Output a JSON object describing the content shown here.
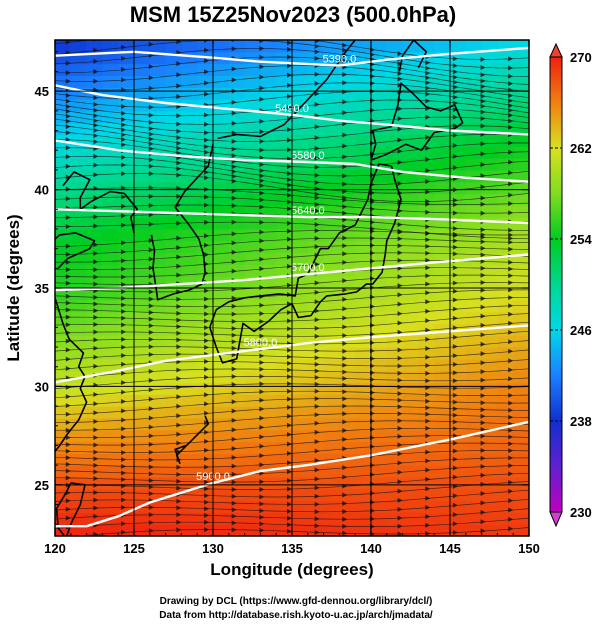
{
  "chart_data": {
    "type": "heatmap",
    "title": "MSM 15Z25Nov2023 (500.0hPa)",
    "xlabel": "Longitude (degrees)",
    "ylabel": "Latitude  (degrees)",
    "xlim": [
      120,
      150
    ],
    "ylim": [
      22.4,
      47.6
    ],
    "x_ticks": [
      120,
      125,
      130,
      135,
      140,
      145,
      150
    ],
    "y_ticks": [
      25,
      30,
      35,
      40,
      45
    ],
    "grid_lon": [
      125,
      130,
      135,
      140,
      145
    ],
    "grid_lat": [
      25,
      30,
      35,
      40,
      45
    ],
    "colorbar": {
      "min": 230,
      "max": 270,
      "ticks": [
        230,
        238,
        246,
        254,
        262,
        270
      ],
      "stops": [
        {
          "value": 230,
          "color": "#c000c0"
        },
        {
          "value": 234,
          "color": "#6020d0"
        },
        {
          "value": 238,
          "color": "#1030d0"
        },
        {
          "value": 242,
          "color": "#1a80ff"
        },
        {
          "value": 246,
          "color": "#00d8e8"
        },
        {
          "value": 250,
          "color": "#00d890"
        },
        {
          "value": 254,
          "color": "#00cc20"
        },
        {
          "value": 258,
          "color": "#80dd20"
        },
        {
          "value": 262,
          "color": "#d8e020"
        },
        {
          "value": 266,
          "color": "#f08010"
        },
        {
          "value": 270,
          "color": "#f02010"
        }
      ]
    },
    "temperature_field": {
      "lat": [
        22.4,
        25,
        27.5,
        30,
        32.5,
        35,
        37.5,
        40,
        42.5,
        45,
        47.6
      ],
      "west_value_at_120E": [
        270,
        268,
        265,
        261,
        258,
        255,
        253.5,
        250,
        246,
        242,
        238
      ],
      "east_value_at_150E": [
        269,
        268,
        267,
        266,
        264,
        262,
        260,
        257,
        254,
        250,
        246
      ]
    },
    "contours": [
      {
        "label": "5390.0",
        "points": [
          [
            120,
            46.8
          ],
          [
            125,
            47.0
          ],
          [
            130,
            46.7
          ],
          [
            133,
            46.5
          ],
          [
            138,
            46.3
          ],
          [
            141,
            46.6
          ],
          [
            145,
            46.9
          ],
          [
            150,
            47.2
          ]
        ]
      },
      {
        "label": "5490.0",
        "points": [
          [
            120,
            45.3
          ],
          [
            123,
            44.8
          ],
          [
            127,
            44.4
          ],
          [
            131,
            44.1
          ],
          [
            135,
            43.8
          ],
          [
            138,
            43.5
          ],
          [
            141,
            43.3
          ],
          [
            145,
            43.0
          ],
          [
            150,
            42.8
          ]
        ]
      },
      {
        "label": "5580.0",
        "points": [
          [
            120,
            42.5
          ],
          [
            124,
            42.0
          ],
          [
            128,
            41.7
          ],
          [
            132,
            41.5
          ],
          [
            136,
            41.4
          ],
          [
            139,
            41.3
          ],
          [
            142,
            40.9
          ],
          [
            146,
            40.6
          ],
          [
            150,
            40.4
          ]
        ]
      },
      {
        "label": "5640.0",
        "points": [
          [
            120,
            39.0
          ],
          [
            124,
            38.9
          ],
          [
            128,
            38.8
          ],
          [
            132,
            38.7
          ],
          [
            136,
            38.6
          ],
          [
            140,
            38.6
          ],
          [
            144,
            38.5
          ],
          [
            147,
            38.4
          ],
          [
            150,
            38.3
          ]
        ]
      },
      {
        "label": "5700.0",
        "points": [
          [
            120,
            34.9
          ],
          [
            124,
            35.0
          ],
          [
            128,
            35.2
          ],
          [
            132,
            35.4
          ],
          [
            136,
            35.7
          ],
          [
            140,
            36.0
          ],
          [
            144,
            36.3
          ],
          [
            147,
            36.5
          ],
          [
            150,
            36.7
          ]
        ]
      },
      {
        "label": "5800.0",
        "points": [
          [
            120,
            30.2
          ],
          [
            124,
            30.8
          ],
          [
            127,
            31.3
          ],
          [
            130,
            31.6
          ],
          [
            133,
            31.9
          ],
          [
            136,
            32.2
          ],
          [
            140,
            32.5
          ],
          [
            145,
            32.8
          ],
          [
            150,
            33.1
          ]
        ]
      },
      {
        "label": "5900.0",
        "points": [
          [
            120,
            22.9
          ],
          [
            122,
            22.9
          ],
          [
            124,
            23.4
          ],
          [
            126,
            24.1
          ],
          [
            128,
            24.6
          ],
          [
            130,
            25.1
          ],
          [
            133,
            25.7
          ],
          [
            136,
            26.0
          ],
          [
            140,
            26.5
          ],
          [
            145,
            27.3
          ],
          [
            150,
            28.2
          ]
        ]
      }
    ]
  },
  "credits": {
    "line1": "Drawing by DCL (https://www.gfd-dennou.org/library/dcl/)",
    "line2": "Data from http://database.rish.kyoto-u.ac.jp/arch/jmadata/"
  }
}
